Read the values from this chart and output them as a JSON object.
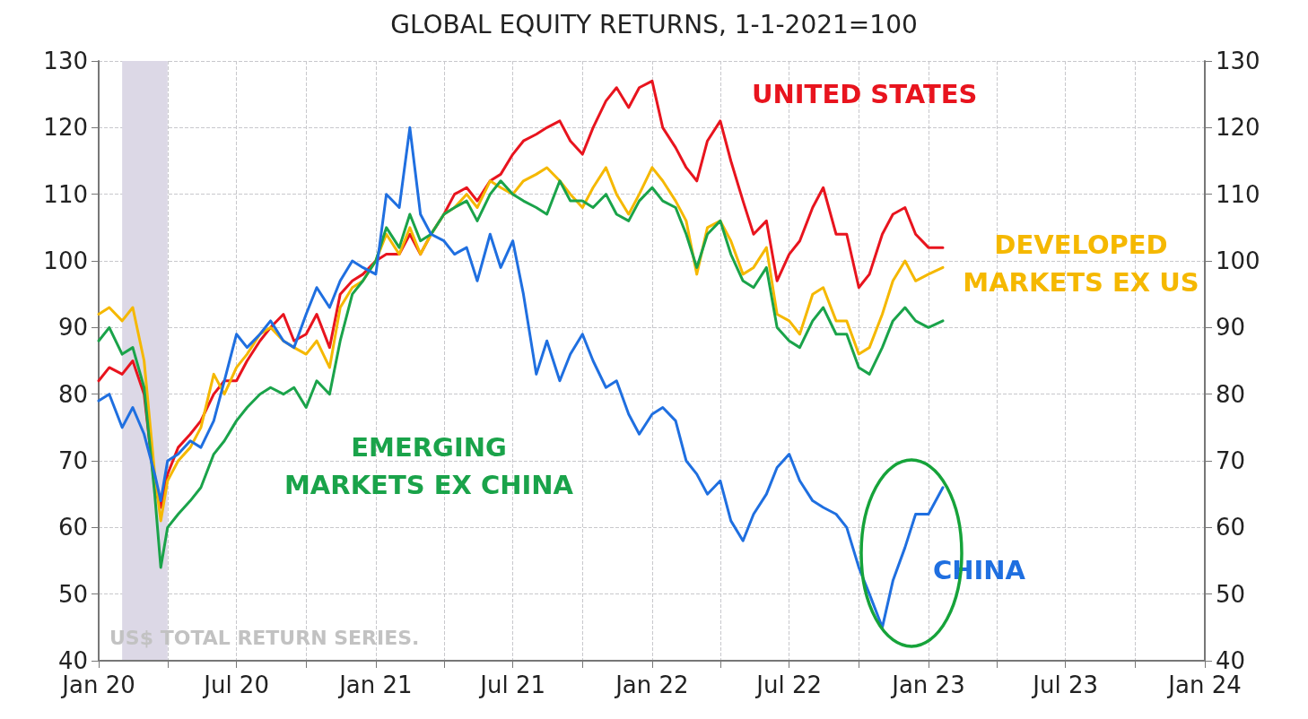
{
  "chart_data": {
    "type": "line",
    "title": "GLOBAL EQUITY RETURNS, 1-1-2021=100",
    "annotations": [
      "US$ TOTAL RETURN SERIES."
    ],
    "xlim": [
      "2020-01-01",
      "2024-01-01"
    ],
    "xticks": [
      {
        "value": "2020-01-01",
        "label": "Jan 20"
      },
      {
        "value": "2020-04-01",
        "label": null
      },
      {
        "value": "2020-07-01",
        "label": "Jul 20"
      },
      {
        "value": "2020-10-01",
        "label": null
      },
      {
        "value": "2021-01-01",
        "label": "Jan 21"
      },
      {
        "value": "2021-04-01",
        "label": null
      },
      {
        "value": "2021-07-01",
        "label": "Jul 21"
      },
      {
        "value": "2021-10-01",
        "label": null
      },
      {
        "value": "2022-01-01",
        "label": "Jan 22"
      },
      {
        "value": "2022-04-01",
        "label": null
      },
      {
        "value": "2022-07-01",
        "label": "Jul 22"
      },
      {
        "value": "2022-10-01",
        "label": null
      },
      {
        "value": "2023-01-01",
        "label": "Jan 23"
      },
      {
        "value": "2023-04-01",
        "label": null
      },
      {
        "value": "2023-07-01",
        "label": "Jul 23"
      },
      {
        "value": "2023-10-01",
        "label": null
      },
      {
        "value": "2024-01-01",
        "label": "Jan 24"
      }
    ],
    "ylim": [
      40,
      130
    ],
    "yticks": [
      40,
      50,
      60,
      70,
      80,
      90,
      100,
      110,
      120,
      130
    ],
    "y2lim": [
      40,
      130
    ],
    "y2ticks": [
      40,
      50,
      60,
      70,
      80,
      90,
      100,
      110,
      120,
      130
    ],
    "grid": true,
    "bands": [
      {
        "axis": "x",
        "from": "2020-02-01",
        "to": "2020-04-01",
        "color": "#dcd8e6"
      }
    ],
    "x": [
      "2020-01-01",
      "2020-01-15",
      "2020-02-01",
      "2020-02-15",
      "2020-03-01",
      "2020-03-15",
      "2020-03-23",
      "2020-04-01",
      "2020-04-15",
      "2020-05-01",
      "2020-05-15",
      "2020-06-01",
      "2020-06-15",
      "2020-07-01",
      "2020-07-15",
      "2020-08-01",
      "2020-08-15",
      "2020-09-01",
      "2020-09-15",
      "2020-10-01",
      "2020-10-15",
      "2020-11-01",
      "2020-11-15",
      "2020-12-01",
      "2020-12-15",
      "2021-01-01",
      "2021-01-15",
      "2021-02-01",
      "2021-02-15",
      "2021-03-01",
      "2021-03-15",
      "2021-04-01",
      "2021-04-15",
      "2021-05-01",
      "2021-05-15",
      "2021-06-01",
      "2021-06-15",
      "2021-07-01",
      "2021-07-15",
      "2021-08-01",
      "2021-08-15",
      "2021-09-01",
      "2021-09-15",
      "2021-10-01",
      "2021-10-15",
      "2021-11-01",
      "2021-11-15",
      "2021-12-01",
      "2021-12-15",
      "2022-01-01",
      "2022-01-15",
      "2022-02-01",
      "2022-02-15",
      "2022-03-01",
      "2022-03-15",
      "2022-04-01",
      "2022-04-15",
      "2022-05-01",
      "2022-05-15",
      "2022-06-01",
      "2022-06-15",
      "2022-07-01",
      "2022-07-15",
      "2022-08-01",
      "2022-08-15",
      "2022-09-01",
      "2022-09-15",
      "2022-10-01",
      "2022-10-15",
      "2022-11-01",
      "2022-11-15",
      "2022-12-01",
      "2022-12-15",
      "2023-01-01",
      "2023-01-20"
    ],
    "series": [
      {
        "name": "UNITED STATES",
        "color": "#e8141e",
        "values": [
          82,
          84,
          83,
          85,
          80,
          66,
          63,
          68,
          72,
          74,
          76,
          80,
          82,
          82,
          85,
          88,
          90,
          92,
          88,
          89,
          92,
          87,
          95,
          97,
          98,
          100,
          101,
          101,
          104,
          101,
          104,
          107,
          110,
          111,
          109,
          112,
          113,
          116,
          118,
          119,
          120,
          121,
          118,
          116,
          120,
          124,
          126,
          123,
          126,
          127,
          120,
          117,
          114,
          112,
          118,
          121,
          115,
          109,
          104,
          106,
          97,
          101,
          103,
          108,
          111,
          104,
          104,
          96,
          98,
          104,
          107,
          108,
          104,
          102,
          102
        ]
      },
      {
        "name": "DEVELOPED MARKETS EX US",
        "color": "#f5b800",
        "values": [
          92,
          93,
          91,
          93,
          85,
          68,
          61,
          67,
          70,
          72,
          75,
          83,
          80,
          84,
          86,
          89,
          90,
          88,
          87,
          86,
          88,
          84,
          93,
          96,
          97,
          100,
          104,
          101,
          105,
          101,
          104,
          107,
          108,
          110,
          108,
          112,
          111,
          110,
          112,
          113,
          114,
          112,
          110,
          108,
          111,
          114,
          110,
          107,
          110,
          114,
          112,
          109,
          106,
          98,
          105,
          106,
          103,
          98,
          99,
          102,
          92,
          91,
          89,
          95,
          96,
          91,
          91,
          86,
          87,
          92,
          97,
          100,
          97,
          98,
          99
        ]
      },
      {
        "name": "EMERGING MARKETS EX CHINA",
        "color": "#1aa34a",
        "values": [
          88,
          90,
          86,
          87,
          81,
          65,
          54,
          60,
          62,
          64,
          66,
          71,
          73,
          76,
          78,
          80,
          81,
          80,
          81,
          78,
          82,
          80,
          88,
          95,
          97,
          100,
          105,
          102,
          107,
          103,
          104,
          107,
          108,
          109,
          106,
          110,
          112,
          110,
          109,
          108,
          107,
          112,
          109,
          109,
          108,
          110,
          107,
          106,
          109,
          111,
          109,
          108,
          104,
          99,
          104,
          106,
          101,
          97,
          96,
          99,
          90,
          88,
          87,
          91,
          93,
          89,
          89,
          84,
          83,
          87,
          91,
          93,
          91,
          90,
          91
        ]
      },
      {
        "name": "CHINA",
        "color": "#1f6fe0",
        "values": [
          79,
          80,
          75,
          78,
          74,
          68,
          64,
          70,
          71,
          73,
          72,
          76,
          82,
          89,
          87,
          89,
          91,
          88,
          87,
          92,
          96,
          93,
          97,
          100,
          99,
          98,
          110,
          108,
          120,
          107,
          104,
          103,
          101,
          102,
          97,
          104,
          99,
          103,
          95,
          83,
          88,
          82,
          86,
          89,
          85,
          81,
          82,
          77,
          74,
          77,
          78,
          76,
          70,
          68,
          65,
          67,
          61,
          58,
          62,
          65,
          69,
          71,
          67,
          64,
          63,
          62,
          60,
          54,
          50,
          45,
          52,
          57,
          62,
          62,
          66
        ]
      }
    ]
  }
}
